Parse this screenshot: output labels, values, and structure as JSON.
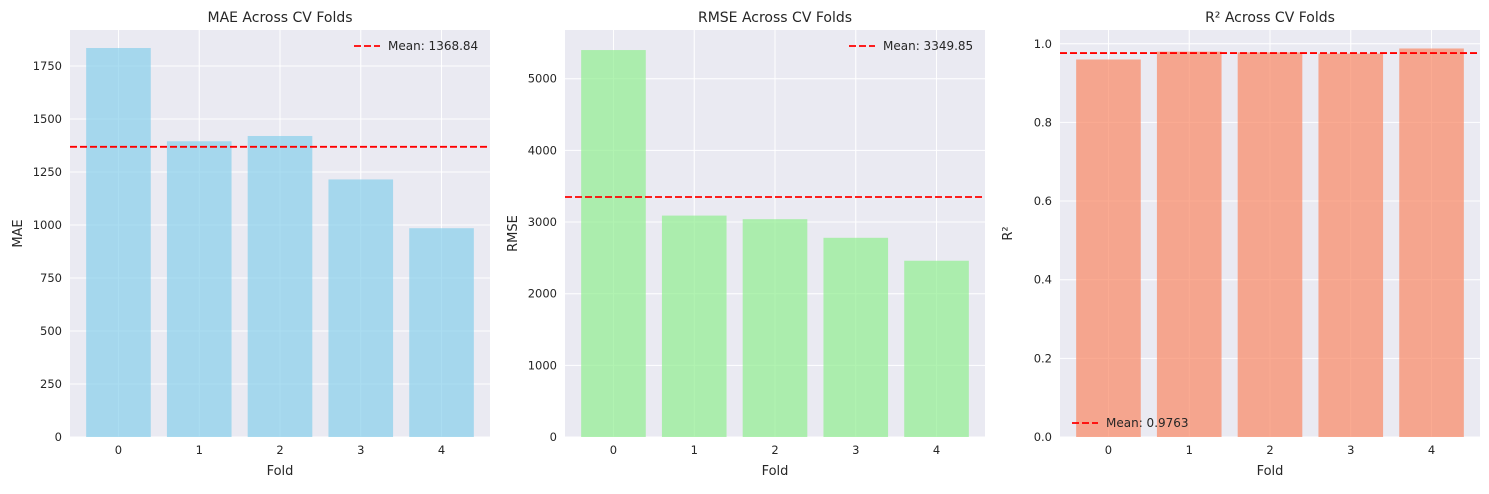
{
  "chart_data": [
    {
      "type": "bar",
      "title": "MAE Across CV Folds",
      "xlabel": "Fold",
      "ylabel": "MAE",
      "categories": [
        "0",
        "1",
        "2",
        "3",
        "4"
      ],
      "values": [
        1835,
        1395,
        1420,
        1215,
        985
      ],
      "ylim": [
        0,
        1920
      ],
      "yticks": [
        0,
        250,
        500,
        750,
        1000,
        1250,
        1500,
        1750
      ],
      "ytick_labels": [
        "0",
        "250",
        "500",
        "750",
        "1000",
        "1250",
        "1500",
        "1750"
      ],
      "mean": 1368.84,
      "mean_label": "Mean: 1368.84",
      "legend_position": "upper-right",
      "bar_color": "#87ceeb",
      "mean_color": "#ff0000",
      "grid": true
    },
    {
      "type": "bar",
      "title": "RMSE Across CV Folds",
      "xlabel": "Fold",
      "ylabel": "RMSE",
      "categories": [
        "0",
        "1",
        "2",
        "3",
        "4"
      ],
      "values": [
        5400,
        3090,
        3040,
        2780,
        2460
      ],
      "ylim": [
        0,
        5680
      ],
      "yticks": [
        0,
        1000,
        2000,
        3000,
        4000,
        5000
      ],
      "ytick_labels": [
        "0",
        "1000",
        "2000",
        "3000",
        "4000",
        "5000"
      ],
      "mean": 3349.85,
      "mean_label": "Mean: 3349.85",
      "legend_position": "upper-right",
      "bar_color": "#90ee90",
      "mean_color": "#ff0000",
      "grid": true
    },
    {
      "type": "bar",
      "title": "R² Across CV Folds",
      "xlabel": "Fold",
      "ylabel": "R²",
      "categories": [
        "0",
        "1",
        "2",
        "3",
        "4"
      ],
      "values": [
        0.96,
        0.98,
        0.978,
        0.975,
        0.988
      ],
      "ylim": [
        0,
        1.035
      ],
      "yticks": [
        0,
        0.2,
        0.4,
        0.6,
        0.8,
        1.0
      ],
      "ytick_labels": [
        "0.0",
        "0.2",
        "0.4",
        "0.6",
        "0.8",
        "1.0"
      ],
      "mean": 0.9763,
      "mean_label": "Mean: 0.9763",
      "legend_position": "lower-left",
      "bar_color": "#fa8864",
      "mean_color": "#ff0000",
      "grid": true
    }
  ]
}
